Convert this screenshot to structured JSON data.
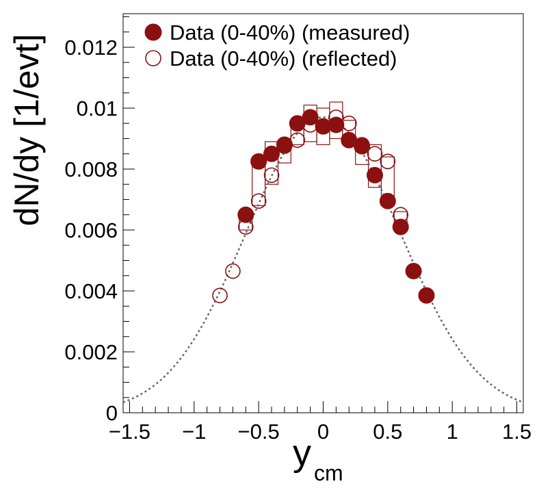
{
  "chart_data": {
    "type": "scatter",
    "title": "",
    "xlabel": "y",
    "xlabel_subscript": "cm",
    "ylabel": "dN/dy [1/evt]",
    "xlim": [
      -1.55,
      1.55
    ],
    "ylim": [
      0,
      0.0131
    ],
    "x_ticks": [
      -1.5,
      -1,
      -0.5,
      0,
      0.5,
      1,
      1.5
    ],
    "x_tick_labels": [
      "−1.5",
      "−1",
      "−0.5",
      "0",
      "0.5",
      "1",
      "1.5"
    ],
    "y_ticks": [
      0,
      0.002,
      0.004,
      0.006,
      0.008,
      0.01,
      0.012
    ],
    "y_tick_labels": [
      "0",
      "0.002",
      "0.004",
      "0.006",
      "0.008",
      "0.01",
      "0.012"
    ],
    "legend_position": "top-left",
    "colors": {
      "series": "#8b1010",
      "fit": "#666666"
    },
    "series": [
      {
        "name": "Data (0-40%) (measured)",
        "marker": "filled-circle",
        "x": [
          -0.6,
          -0.5,
          -0.4,
          -0.3,
          -0.2,
          -0.1,
          0.0,
          0.1,
          0.2,
          0.3,
          0.4,
          0.5,
          0.6,
          0.7,
          0.8
        ],
        "y": [
          0.0065,
          0.00825,
          0.0085,
          0.0088,
          0.0095,
          0.0097,
          0.0094,
          0.00945,
          0.00895,
          0.00875,
          0.0078,
          0.00695,
          0.0061,
          0.00465,
          0.00385
        ]
      },
      {
        "name": "Data (0-40%) (reflected)",
        "marker": "open-circle",
        "x": [
          -0.8,
          -0.7,
          -0.6,
          -0.5,
          -0.4,
          -0.3,
          -0.2,
          -0.1,
          0.0,
          0.1,
          0.2,
          0.3,
          0.4,
          0.5,
          0.6
        ],
        "y": [
          0.00385,
          0.00465,
          0.0061,
          0.00695,
          0.0078,
          0.00875,
          0.00895,
          0.00945,
          0.0094,
          0.0097,
          0.0095,
          0.0088,
          0.0085,
          0.00825,
          0.0065
        ]
      }
    ],
    "systematic_boxes": {
      "x": [
        -0.6,
        -0.5,
        -0.4,
        -0.3,
        -0.2,
        -0.1,
        0.0,
        0.1,
        0.2,
        0.3,
        0.4,
        0.5,
        0.6
      ],
      "y": [
        0.0063,
        0.0076,
        0.0082,
        0.00855,
        0.0092,
        0.0095,
        0.0094,
        0.0096,
        0.0092,
        0.0085,
        0.0081,
        0.0076,
        0.0063
      ],
      "half_height": [
        0.0003,
        0.0008,
        0.0007,
        0.00035,
        0.0004,
        0.0006,
        0.0006,
        0.0006,
        0.0004,
        0.00035,
        0.0007,
        0.0008,
        0.0003
      ]
    },
    "fit": {
      "name": "gaussian",
      "amplitude": 0.0097,
      "mean": 0.0,
      "sigma": 0.6,
      "style": "dotted"
    }
  }
}
